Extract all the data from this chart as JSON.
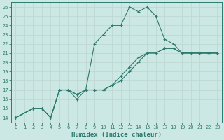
{
  "xlabel": "Humidex (Indice chaleur)",
  "bg_color": "#cce8e4",
  "grid_color": "#add4cf",
  "line_color": "#2d7a6e",
  "xlim": [
    -0.5,
    23.5
  ],
  "ylim": [
    13.5,
    26.5
  ],
  "xticks": [
    0,
    1,
    2,
    3,
    4,
    5,
    6,
    7,
    8,
    9,
    10,
    11,
    12,
    13,
    14,
    15,
    16,
    17,
    18,
    19,
    20,
    21,
    22,
    23
  ],
  "yticks": [
    14,
    15,
    16,
    17,
    18,
    19,
    20,
    21,
    22,
    23,
    24,
    25,
    26
  ],
  "series1_x": [
    0,
    2,
    3,
    4,
    5,
    6,
    7,
    8,
    9,
    10,
    11,
    12,
    13,
    14,
    15,
    16,
    17,
    18,
    19,
    20,
    21,
    22,
    23
  ],
  "series1_y": [
    14,
    15,
    15,
    14,
    17,
    17,
    16,
    17,
    22,
    23,
    24,
    24,
    26,
    25.5,
    26,
    25,
    22.5,
    22,
    21,
    21,
    21,
    21,
    21
  ],
  "series2_x": [
    0,
    2,
    3,
    4,
    5,
    6,
    7,
    8,
    9,
    10,
    11,
    12,
    13,
    14,
    15,
    16,
    17,
    18,
    19,
    20,
    21,
    22,
    23
  ],
  "series2_y": [
    14,
    15,
    15,
    14,
    17,
    17,
    16.5,
    17,
    17,
    17,
    17.5,
    18.5,
    19.5,
    20.5,
    21,
    21,
    21.5,
    21.5,
    21,
    21,
    21,
    21,
    21
  ],
  "series3_x": [
    0,
    2,
    3,
    4,
    5,
    6,
    7,
    8,
    9,
    10,
    11,
    12,
    13,
    14,
    15,
    16,
    17,
    18,
    19,
    20,
    21,
    22,
    23
  ],
  "series3_y": [
    14,
    15,
    15,
    14,
    17,
    17,
    16.5,
    17,
    17,
    17,
    17.5,
    18,
    19,
    20,
    21,
    21,
    21.5,
    21.5,
    21,
    21,
    21,
    21,
    21
  ]
}
